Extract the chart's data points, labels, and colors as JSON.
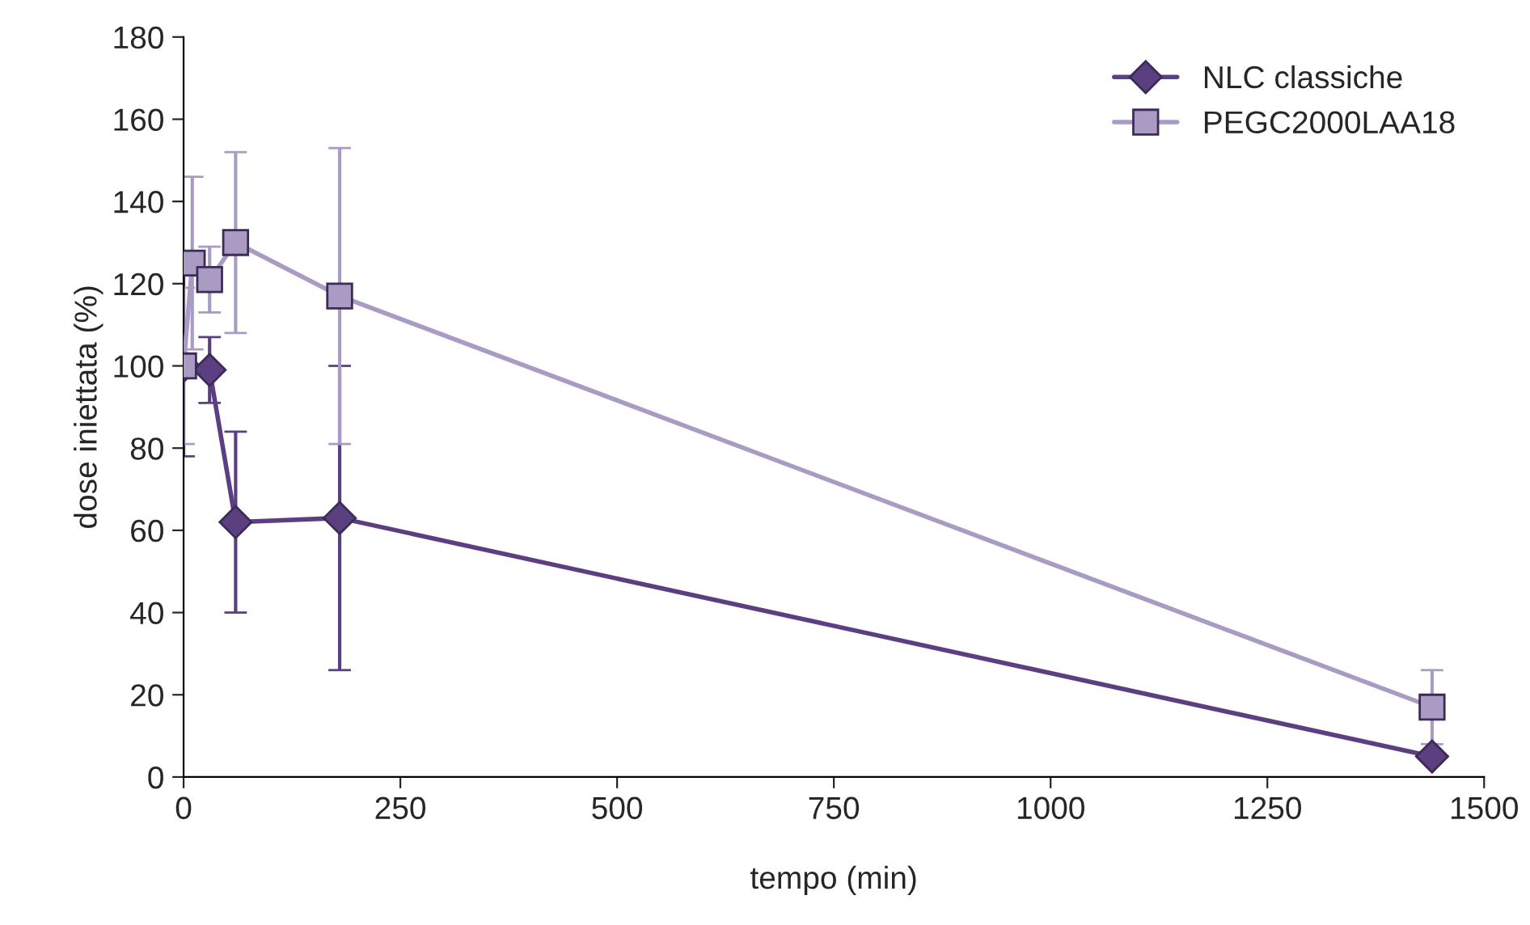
{
  "chart_data": {
    "type": "line",
    "xlabel": "tempo (min)",
    "ylabel": "dose iniettata (%)",
    "xlim": [
      0,
      1500
    ],
    "xticks": [
      0,
      250,
      500,
      750,
      1000,
      1250,
      1500
    ],
    "ylim": [
      0,
      180
    ],
    "yticks": [
      0,
      20,
      40,
      60,
      80,
      100,
      120,
      140,
      160,
      180
    ],
    "grid": false,
    "legend": "top right",
    "line_style": "solid",
    "series": [
      {
        "name": "NLC classiche",
        "color": "#5b3f80",
        "marker": "diamond",
        "x": [
          0,
          30,
          60,
          180,
          1440
        ],
        "values": [
          100,
          99,
          62,
          63,
          5
        ],
        "errors": [
          22,
          8,
          22,
          37,
          null
        ]
      },
      {
        "name": "PEGC2000LAA18",
        "color": "#a99bc4",
        "marker": "square",
        "x": [
          0,
          10,
          30,
          60,
          180,
          1440
        ],
        "values": [
          100,
          125,
          121,
          130,
          117,
          17
        ],
        "errors": [
          19,
          21,
          8,
          22,
          36,
          9
        ]
      }
    ]
  }
}
